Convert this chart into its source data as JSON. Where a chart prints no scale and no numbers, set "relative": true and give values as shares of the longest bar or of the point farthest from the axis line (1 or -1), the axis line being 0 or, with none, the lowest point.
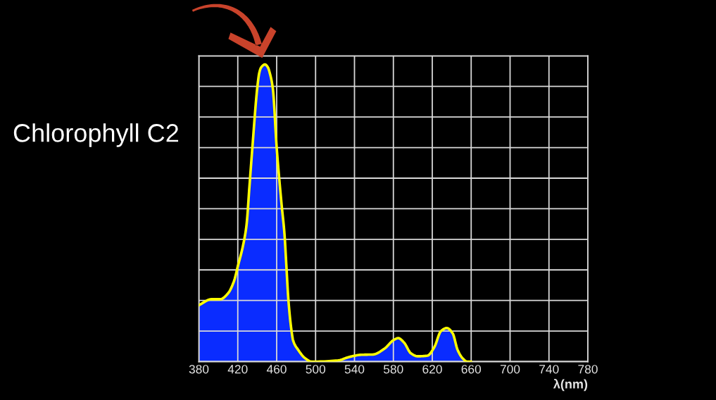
{
  "chart_data": {
    "type": "area",
    "title": "Chlorophyll C2",
    "xlabel": "λ(nm)",
    "x": [
      380,
      393,
      402,
      410,
      416,
      420,
      426,
      429,
      432,
      435,
      440,
      442,
      444,
      448,
      451,
      453,
      456,
      460,
      465,
      468,
      470,
      472,
      475,
      477,
      482,
      489,
      496,
      500,
      523,
      535,
      547,
      559,
      571,
      580,
      585,
      591,
      598,
      605,
      615,
      622,
      629,
      635,
      641,
      646,
      651,
      656,
      660
    ],
    "series": [
      {
        "color": "#0a2cff",
        "values": [
          0.19,
          0.21,
          0.21,
          0.23,
          0.27,
          0.32,
          0.4,
          0.46,
          0.59,
          0.72,
          0.92,
          0.97,
          0.99,
          1.0,
          0.99,
          0.97,
          0.92,
          0.72,
          0.53,
          0.43,
          0.32,
          0.21,
          0.11,
          0.07,
          0.04,
          0.012,
          0.0,
          0.0,
          0.004,
          0.016,
          0.023,
          0.024,
          0.044,
          0.072,
          0.079,
          0.064,
          0.028,
          0.018,
          0.02,
          0.048,
          0.103,
          0.113,
          0.095,
          0.04,
          0.012,
          0.0,
          0.0
        ]
      }
    ],
    "relative": true,
    "xlim": [
      380,
      780
    ],
    "xticks": [
      380,
      420,
      460,
      500,
      540,
      580,
      620,
      660,
      700,
      740,
      780
    ],
    "grid": true
  }
}
